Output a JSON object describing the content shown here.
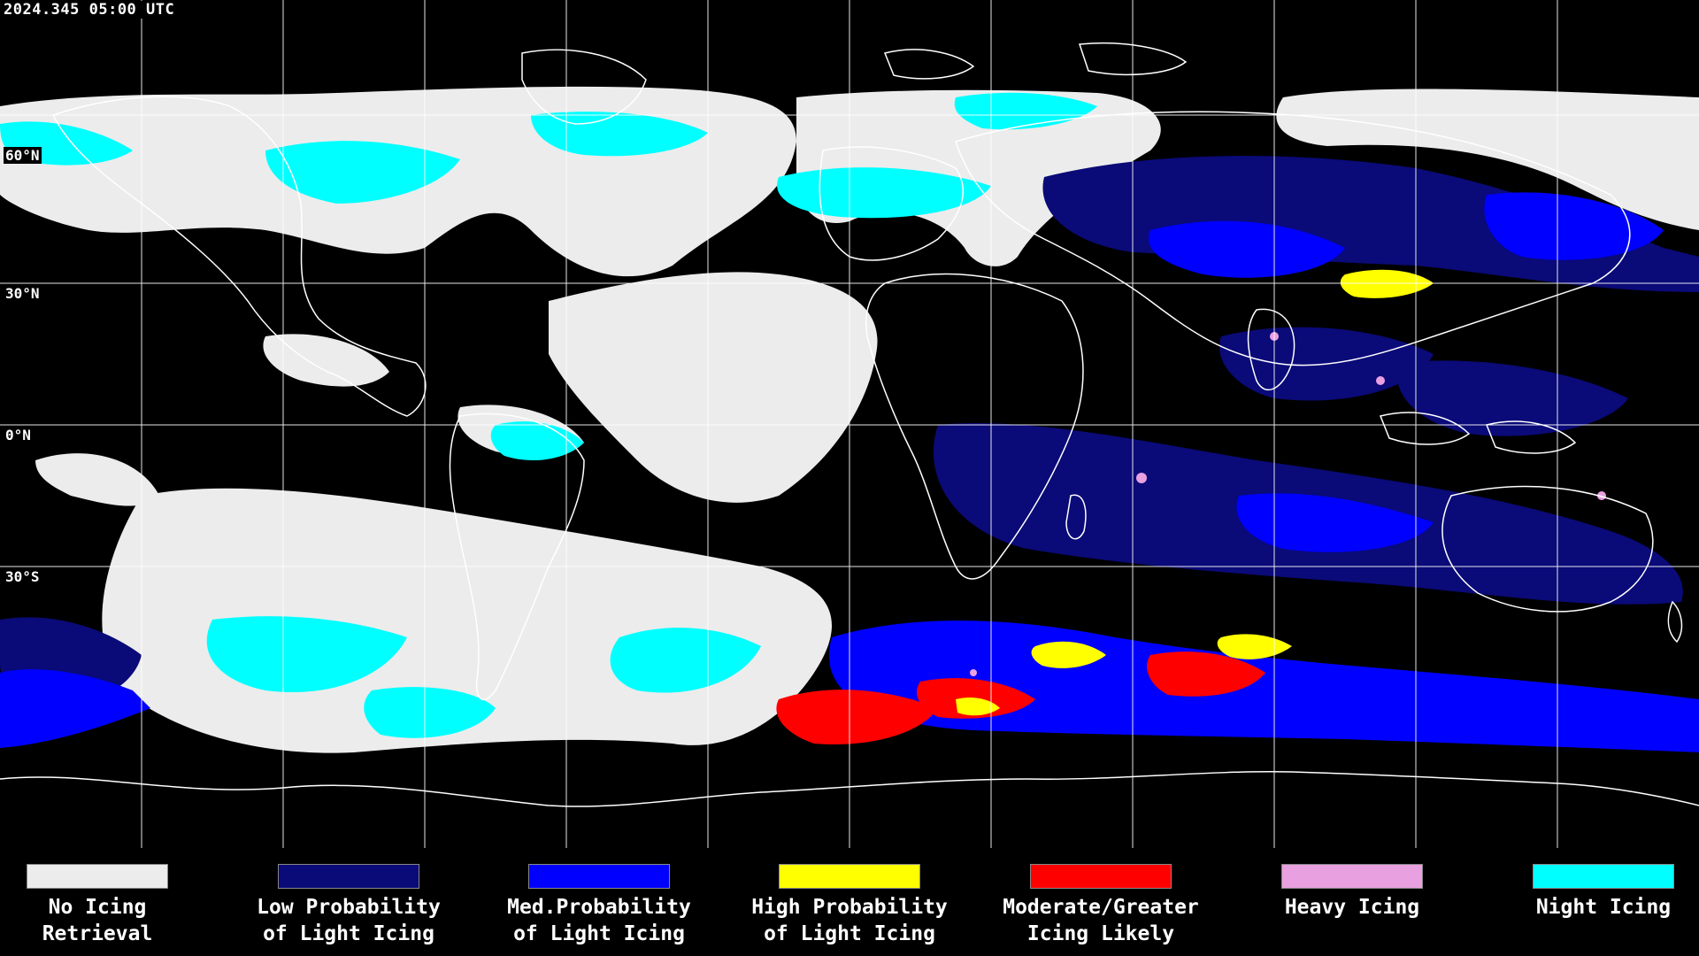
{
  "timestamp": "2024.345 05:00 UTC",
  "lat_labels": [
    "60°N",
    "30°N",
    "0°N",
    "30°S"
  ],
  "colors": {
    "background": "#000000",
    "no_icing": "#ececec",
    "low": "#0a0a78",
    "med": "#0000ff",
    "high": "#ffff00",
    "moderate": "#ff0000",
    "heavy": "#e8a0e0",
    "night": "#00ffff",
    "coast": "#ffffff",
    "grid": "#ffffff"
  },
  "legend": [
    {
      "label": "No Icing\nRetrieval",
      "color": "#ececec"
    },
    {
      "label": "Low Probability\nof Light Icing",
      "color": "#0a0a78"
    },
    {
      "label": "Med.Probability\nof Light Icing",
      "color": "#0000ff"
    },
    {
      "label": "High Probability\nof Light Icing",
      "color": "#ffff00"
    },
    {
      "label": "Moderate/Greater\nIcing Likely",
      "color": "#ff0000"
    },
    {
      "label": "Heavy Icing",
      "color": "#e8a0e0"
    },
    {
      "label": "Night Icing",
      "color": "#00ffff"
    }
  ]
}
